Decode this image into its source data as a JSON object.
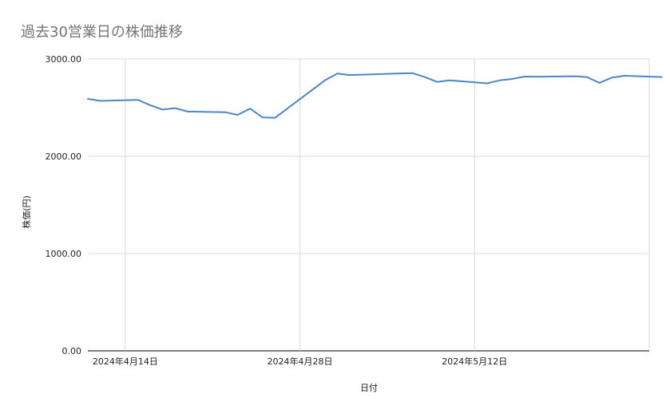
{
  "chart_data": {
    "type": "line",
    "title": "過去30営業日の株価推移",
    "xlabel": "日付",
    "ylabel": "株価(円)",
    "ylim": [
      0,
      3000
    ],
    "y_ticks": [
      0,
      1000,
      2000,
      3000
    ],
    "y_tick_labels": [
      "0.00",
      "1000.00",
      "2000.00",
      "3000.00"
    ],
    "x_range": [
      "2024-04-11",
      "2024-05-26"
    ],
    "x_ticks": [
      "2024-04-14",
      "2024-04-28",
      "2024-05-12",
      "2024-05-26"
    ],
    "x_tick_labels": [
      "2024年4月14日",
      "2024年4月28日",
      "2024年5月12日",
      ""
    ],
    "grid": true,
    "legend": "none",
    "line_color": "#4a86c8",
    "series": [
      {
        "x": [
          "2024-04-11",
          "2024-04-12",
          "2024-04-15",
          "2024-04-16",
          "2024-04-17",
          "2024-04-18",
          "2024-04-19",
          "2024-04-22",
          "2024-04-23",
          "2024-04-24",
          "2024-04-25",
          "2024-04-26",
          "2024-04-30",
          "2024-05-01",
          "2024-05-02",
          "2024-05-07",
          "2024-05-08",
          "2024-05-09",
          "2024-05-10",
          "2024-05-13",
          "2024-05-14",
          "2024-05-15",
          "2024-05-16",
          "2024-05-17",
          "2024-05-20",
          "2024-05-21",
          "2024-05-22",
          "2024-05-23",
          "2024-05-24",
          "2024-05-27"
        ],
        "values": [
          2590,
          2570,
          2580,
          2525,
          2480,
          2495,
          2460,
          2453,
          2425,
          2490,
          2400,
          2395,
          2780,
          2850,
          2835,
          2855,
          2815,
          2765,
          2780,
          2750,
          2780,
          2795,
          2820,
          2818,
          2823,
          2815,
          2755,
          2808,
          2828,
          2815
        ]
      }
    ]
  }
}
